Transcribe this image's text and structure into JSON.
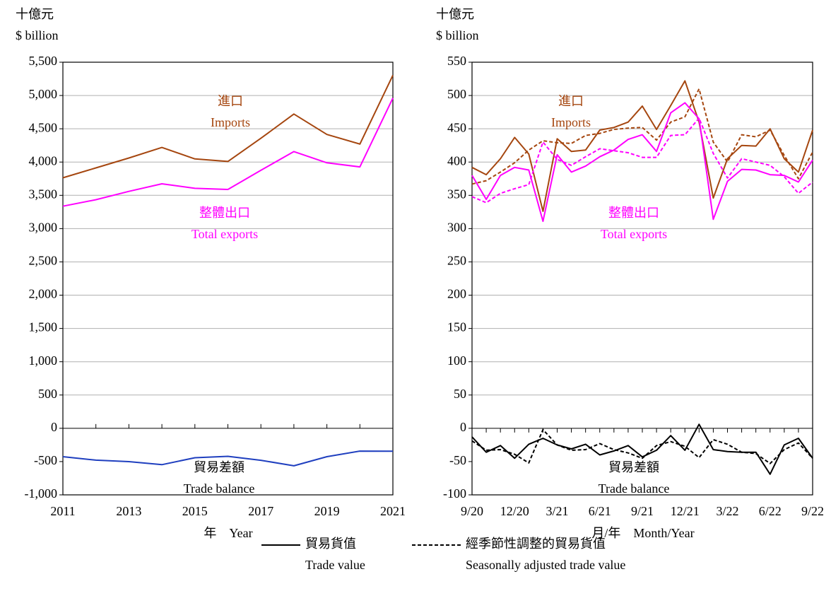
{
  "chart_data": [
    {
      "type": "line",
      "y_label": [
        "十億元",
        "$ billion"
      ],
      "x_label": "年　Year",
      "x": [
        2011,
        2012,
        2013,
        2014,
        2015,
        2016,
        2017,
        2018,
        2019,
        2020,
        2021
      ],
      "xlim": [
        2011,
        2021
      ],
      "xticks": [
        2011,
        2013,
        2015,
        2017,
        2019,
        2021
      ],
      "ylim": [
        -1000,
        5500
      ],
      "yticks": [
        {
          "value": -1000,
          "label": "-1,000"
        },
        -500,
        0,
        500,
        {
          "value": 1000,
          "label": "1,000"
        },
        {
          "value": 1500,
          "label": "1,500"
        },
        {
          "value": 2000,
          "label": "2,000"
        },
        {
          "value": 2500,
          "label": "2,500"
        },
        {
          "value": 3000,
          "label": "3,000"
        },
        {
          "value": 3500,
          "label": "3,500"
        },
        {
          "value": 4000,
          "label": "4,000"
        },
        {
          "value": 4500,
          "label": "4,500"
        },
        {
          "value": 5000,
          "label": "5,000"
        },
        {
          "value": 5500,
          "label": "5,500"
        }
      ],
      "grid": true,
      "series": [
        {
          "color": "#a5460f",
          "dashed": false,
          "values": [
            3764,
            3912,
            4061,
            4219,
            4047,
            4009,
            4357,
            4722,
            4415,
            4270,
            5305
          ]
        },
        {
          "color": "#ff00ff",
          "dashed": false,
          "values": [
            3337,
            3434,
            3560,
            3673,
            3605,
            3588,
            3876,
            4158,
            3989,
            3927,
            4961
          ]
        },
        {
          "color": "#1f3fbf",
          "dashed": false,
          "values": [
            -427,
            -478,
            -501,
            -546,
            -442,
            -421,
            -481,
            -564,
            -426,
            -343,
            -344
          ]
        }
      ],
      "annotations": [
        {
          "lines": [
            "進口",
            "Imports"
          ],
          "color": "#a5460f"
        },
        {
          "lines": [
            "整體出口",
            "Total exports"
          ],
          "color": "#ff00ff"
        },
        {
          "lines": [
            "貿易差額",
            "Trade balance"
          ],
          "color": "#000000"
        }
      ]
    },
    {
      "type": "line",
      "y_label": [
        "十億元",
        "$ billion"
      ],
      "x_label": "月/年　Month/Year",
      "categories": [
        "9/20",
        null,
        null,
        "12/20",
        null,
        null,
        "3/21",
        null,
        null,
        "6/21",
        null,
        null,
        "9/21",
        null,
        null,
        "12/21",
        null,
        null,
        "3/22",
        null,
        null,
        "6/22",
        null,
        null,
        "9/22"
      ],
      "ylim": [
        -100,
        550
      ],
      "yticks": [
        -100,
        -50,
        0,
        50,
        100,
        150,
        200,
        250,
        300,
        350,
        400,
        450,
        500,
        550
      ],
      "grid": true,
      "series": [
        {
          "color": "#a5460f",
          "dashed": false,
          "values": [
            392,
            381,
            405,
            437,
            412,
            326,
            435,
            416,
            418,
            448,
            452,
            460,
            484,
            449,
            485,
            522,
            460,
            346,
            405,
            425,
            424,
            450,
            405,
            385,
            448
          ]
        },
        {
          "color": "#a5460f",
          "dashed": true,
          "values": [
            367,
            372,
            385,
            399,
            418,
            432,
            429,
            428,
            440,
            443,
            449,
            451,
            452,
            433,
            460,
            468,
            510,
            430,
            400,
            441,
            438,
            448,
            410,
            375,
            415
          ]
        },
        {
          "color": "#ff00ff",
          "dashed": false,
          "values": [
            380,
            344,
            380,
            392,
            388,
            311,
            411,
            385,
            394,
            408,
            418,
            434,
            441,
            416,
            474,
            489,
            465,
            314,
            371,
            389,
            388,
            381,
            380,
            370,
            403
          ]
        },
        {
          "color": "#ff00ff",
          "dashed": true,
          "values": [
            348,
            339,
            353,
            360,
            366,
            430,
            404,
            395,
            408,
            420,
            417,
            414,
            407,
            407,
            440,
            441,
            466,
            413,
            376,
            405,
            400,
            395,
            378,
            353,
            370
          ]
        },
        {
          "color": "#000000",
          "dashed": false,
          "values": [
            -13,
            -36,
            -26,
            -45,
            -24,
            -15,
            -25,
            -31,
            -24,
            -40,
            -34,
            -26,
            -43,
            -33,
            -11,
            -33,
            6,
            -32,
            -35,
            -36,
            -36,
            -69,
            -25,
            -15,
            -45
          ]
        },
        {
          "color": "#000000",
          "dashed": true,
          "values": [
            -19,
            -33,
            -32,
            -39,
            -52,
            -2,
            -25,
            -33,
            -32,
            -23,
            -32,
            -37,
            -45,
            -26,
            -20,
            -27,
            -44,
            -17,
            -24,
            -36,
            -38,
            -53,
            -32,
            -22,
            -45
          ]
        }
      ],
      "annotations": [
        {
          "lines": [
            "進口",
            "Imports"
          ],
          "color": "#a5460f"
        },
        {
          "lines": [
            "整體出口",
            "Total exports"
          ],
          "color": "#ff00ff"
        },
        {
          "lines": [
            "貿易差額",
            "Trade balance"
          ],
          "color": "#000000"
        }
      ]
    }
  ],
  "legend": [
    {
      "dashed": false,
      "lines": [
        "貿易貨值",
        "Trade value"
      ]
    },
    {
      "dashed": true,
      "lines": [
        "經季節性調整的貿易貨值",
        "Seasonally adjusted trade value"
      ]
    }
  ]
}
